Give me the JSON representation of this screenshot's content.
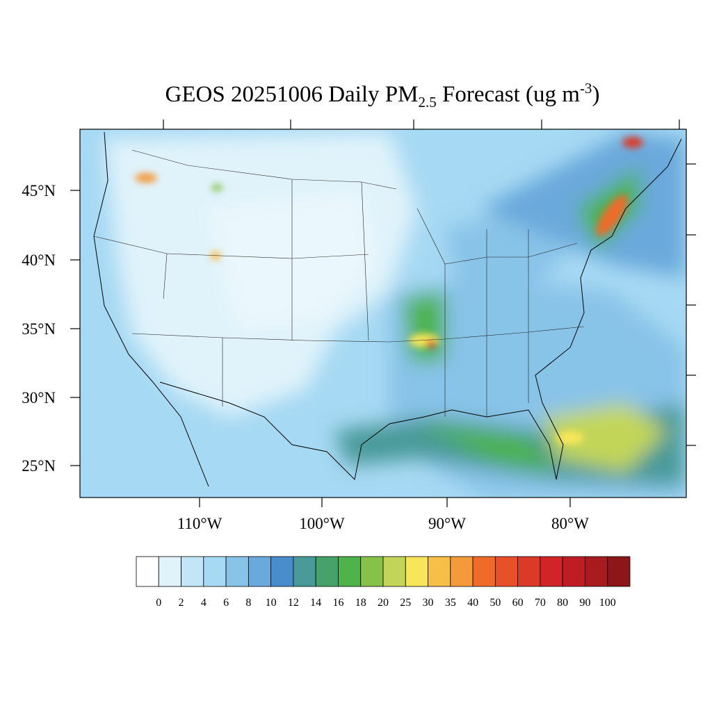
{
  "title": {
    "main": "GEOS 20251006 Daily PM",
    "subscript": "2.5",
    "middle": " Forecast (ug m",
    "superscript": "-3",
    "end": ")"
  },
  "lat_labels": [
    "45°N",
    "40°N",
    "35°N",
    "30°N",
    "25°N"
  ],
  "lon_labels": [
    "110°W",
    "100°W",
    "90°W",
    "80°W"
  ],
  "colorbar": {
    "levels": [
      0,
      2,
      4,
      6,
      8,
      10,
      12,
      14,
      16,
      18,
      20,
      25,
      30,
      35,
      40,
      50,
      60,
      70,
      80,
      90,
      100
    ],
    "colors": [
      "#ffffff",
      "#e0f3fb",
      "#c2e6f7",
      "#a6d9f3",
      "#88c3e8",
      "#6aa9dc",
      "#4a8dcc",
      "#4a9a9a",
      "#45a36a",
      "#4db34a",
      "#86c24a",
      "#c2d558",
      "#f7e65a",
      "#f7bf48",
      "#f59a3a",
      "#f06a2a",
      "#e8502a",
      "#dc3a28",
      "#d02428",
      "#c01c24",
      "#a81c20",
      "#8c1618"
    ]
  }
}
